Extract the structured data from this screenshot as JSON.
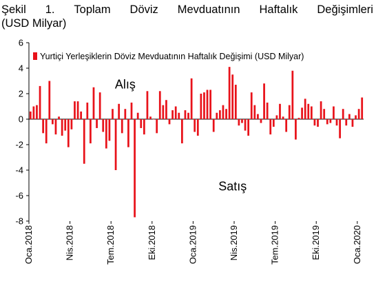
{
  "title": {
    "line1_words": [
      "Şekil",
      "1.",
      "Toplam",
      "Döviz",
      "Mevduatının",
      "Haftalık",
      "Değişimleri"
    ],
    "line2": "(USD Milyar)"
  },
  "chart_data": {
    "type": "bar",
    "title": "Şekil 1. Toplam Döviz Mevduatının Haftalık Değişimleri (USD Milyar)",
    "ylim": [
      -8,
      6
    ],
    "yticks": [
      6,
      4,
      2,
      0,
      -2,
      -4,
      -6,
      -8
    ],
    "grid": false,
    "legend_position": "top-right",
    "series": [
      {
        "name": "Yurtiçi Yerleşiklerin Döviz Mevduatının Haftalık Değişimi (USD Milyar)",
        "color": "#e8121a",
        "values": [
          0.6,
          1.0,
          1.1,
          2.6,
          -1.1,
          -1.9,
          3.0,
          -0.4,
          -1.2,
          0.2,
          -1.3,
          -0.9,
          -2.2,
          -0.8,
          1.4,
          1.4,
          0.6,
          -3.5,
          1.3,
          -1.9,
          2.5,
          -0.7,
          2.1,
          -1.0,
          -2.3,
          -1.7,
          0.8,
          -4.0,
          1.2,
          -1.1,
          0.8,
          -2.2,
          1.3,
          -7.7,
          0.5,
          -0.7,
          -1.2,
          2.2,
          0.2,
          0.0,
          -1.1,
          2.2,
          1.1,
          1.5,
          -0.4,
          0.7,
          1.0,
          0.5,
          -1.9,
          0.7,
          0.5,
          3.2,
          -1.0,
          -1.3,
          2.0,
          2.1,
          2.3,
          2.3,
          -1.0,
          0.5,
          0.7,
          1.1,
          0.8,
          4.1,
          3.5,
          2.7,
          -0.5,
          -0.3,
          -0.9,
          -1.3,
          2.1,
          1.1,
          0.4,
          -0.3,
          2.8,
          1.3,
          -1.2,
          -0.6,
          0.3,
          1.2,
          0.2,
          -1.0,
          1.1,
          3.8,
          -1.6,
          0.1,
          0.9,
          1.6,
          1.2,
          1.0,
          -0.5,
          -0.6,
          1.4,
          0.8,
          -0.4,
          -0.3,
          1.0,
          -0.5,
          -1.5,
          0.8,
          -0.5,
          0.4,
          -0.6,
          0.3,
          0.8,
          1.7
        ]
      }
    ],
    "xtick_labels": [
      "Oca.2018",
      "Nis.2018",
      "Tem.2018",
      "Eki.2018",
      "Oca.2019",
      "Nis.2019",
      "Tem.2019",
      "Eki.2019",
      "Oca.2020"
    ],
    "xtick_indices": [
      0,
      13,
      26,
      39,
      52,
      65,
      78,
      91,
      104
    ],
    "annotations": [
      {
        "text": "Alış",
        "x_index": 30,
        "y": 2.4
      },
      {
        "text": "Satış",
        "x_index": 64,
        "y": -5.6
      }
    ]
  }
}
